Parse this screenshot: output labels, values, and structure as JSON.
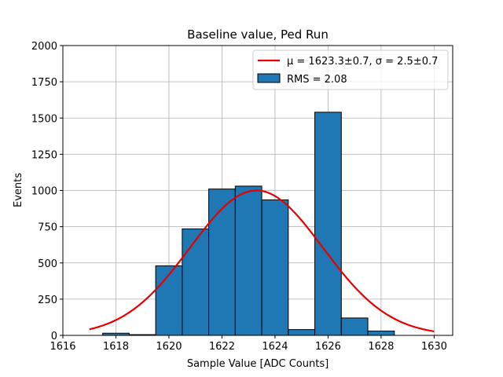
{
  "chart_data": {
    "type": "bar",
    "title": "Baseline value, Ped Run",
    "xlabel": "Sample Value [ADC Counts]",
    "ylabel": "Events",
    "xlim": [
      1616.0,
      1630.7
    ],
    "ylim": [
      0,
      2000
    ],
    "xticks": [
      1616,
      1618,
      1620,
      1622,
      1624,
      1626,
      1628,
      1630
    ],
    "yticks": [
      0,
      250,
      500,
      750,
      1000,
      1250,
      1500,
      1750,
      2000
    ],
    "grid": true,
    "bin_edges": [
      1616.5,
      1617.5,
      1618.5,
      1619.5,
      1620.5,
      1621.5,
      1622.5,
      1623.5,
      1624.5,
      1625.5,
      1626.5,
      1627.5,
      1628.5,
      1629.5,
      1630.0
    ],
    "counts": [
      0,
      15,
      5,
      480,
      735,
      1010,
      1030,
      935,
      40,
      1540,
      120,
      30,
      0,
      0
    ],
    "histogram_color": "#1f77b4",
    "fit": {
      "type": "gaussian",
      "mu": 1623.3,
      "sigma": 2.5,
      "amplitude": 1000,
      "x_range": [
        1617,
        1630
      ],
      "color": "#e60000"
    },
    "legend": {
      "placement": "upper right",
      "entries": [
        {
          "label": "μ = 1623.3±0.7, σ = 2.5±0.7",
          "kind": "line",
          "color": "#e60000"
        },
        {
          "label": "RMS = 2.08",
          "kind": "patch",
          "color": "#1f77b4"
        }
      ]
    }
  }
}
